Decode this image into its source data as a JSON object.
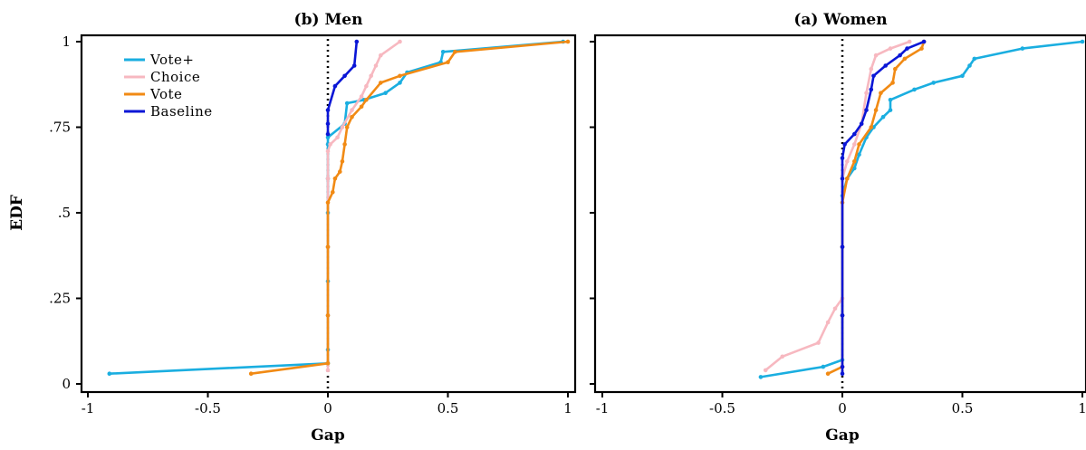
{
  "ylabel": "EDF",
  "legend": [
    {
      "label": "Vote+",
      "color": "#1aaee0",
      "series_index": 0
    },
    {
      "label": "Choice",
      "color": "#f7b8c0",
      "series_index": 1
    },
    {
      "label": "Vote",
      "color": "#f18a14",
      "series_index": 2
    },
    {
      "label": "Baseline",
      "color": "#0a16d6",
      "series_index": 3
    }
  ],
  "chart_data": [
    {
      "type": "line",
      "title": "(b) Men",
      "xlabel": "Gap",
      "ylabel": "EDF",
      "xlim": [
        -1,
        1
      ],
      "ylim": [
        0,
        1
      ],
      "x_ticks": [
        -1,
        -0.5,
        0,
        0.5,
        1
      ],
      "x_tick_labels": [
        "-1",
        "-0.5",
        "0",
        "0.5",
        "1"
      ],
      "y_ticks": [
        0,
        0.25,
        0.5,
        0.75,
        1
      ],
      "y_tick_labels": [
        "0",
        ".25",
        ".5",
        ".75",
        "1"
      ],
      "vline_x": 0,
      "legend_position": "top-left",
      "series": [
        {
          "name": "Vote+",
          "color": "#1aaee0",
          "points": [
            [
              -0.91,
              0.03
            ],
            [
              0,
              0.06
            ],
            [
              0,
              0.1
            ],
            [
              0,
              0.2
            ],
            [
              0,
              0.3
            ],
            [
              0,
              0.4
            ],
            [
              0,
              0.5
            ],
            [
              0,
              0.6
            ],
            [
              0,
              0.7
            ],
            [
              0,
              0.72
            ],
            [
              0.07,
              0.76
            ],
            [
              0.08,
              0.82
            ],
            [
              0.15,
              0.83
            ],
            [
              0.24,
              0.85
            ],
            [
              0.3,
              0.88
            ],
            [
              0.33,
              0.91
            ],
            [
              0.47,
              0.94
            ],
            [
              0.48,
              0.97
            ],
            [
              0.98,
              1
            ]
          ]
        },
        {
          "name": "Choice",
          "color": "#f7b8c0",
          "points": [
            [
              0,
              0.04
            ],
            [
              0,
              0.2
            ],
            [
              0,
              0.4
            ],
            [
              0,
              0.6
            ],
            [
              0,
              0.68
            ],
            [
              0.01,
              0.7
            ],
            [
              0.04,
              0.72
            ],
            [
              0.06,
              0.75
            ],
            [
              0.1,
              0.8
            ],
            [
              0.14,
              0.84
            ],
            [
              0.16,
              0.87
            ],
            [
              0.18,
              0.9
            ],
            [
              0.2,
              0.93
            ],
            [
              0.22,
              0.96
            ],
            [
              0.3,
              1
            ]
          ]
        },
        {
          "name": "Vote",
          "color": "#f18a14",
          "points": [
            [
              -0.32,
              0.03
            ],
            [
              0,
              0.06
            ],
            [
              0,
              0.2
            ],
            [
              0,
              0.4
            ],
            [
              0,
              0.53
            ],
            [
              0.02,
              0.56
            ],
            [
              0.03,
              0.6
            ],
            [
              0.05,
              0.62
            ],
            [
              0.06,
              0.65
            ],
            [
              0.07,
              0.7
            ],
            [
              0.08,
              0.75
            ],
            [
              0.1,
              0.78
            ],
            [
              0.14,
              0.81
            ],
            [
              0.16,
              0.83
            ],
            [
              0.22,
              0.88
            ],
            [
              0.3,
              0.9
            ],
            [
              0.5,
              0.94
            ],
            [
              0.53,
              0.97
            ],
            [
              1.0,
              1
            ]
          ]
        },
        {
          "name": "Baseline",
          "color": "#0a16d6",
          "points": [
            [
              0,
              0.73
            ],
            [
              0,
              0.76
            ],
            [
              0,
              0.8
            ],
            [
              0.03,
              0.87
            ],
            [
              0.07,
              0.9
            ],
            [
              0.11,
              0.93
            ],
            [
              0.12,
              1
            ]
          ]
        }
      ]
    },
    {
      "type": "line",
      "title": "(a) Women",
      "xlabel": "Gap",
      "ylabel": "",
      "xlim": [
        -1,
        1
      ],
      "ylim": [
        0,
        1
      ],
      "x_ticks": [
        -1,
        -0.5,
        0,
        0.5,
        1
      ],
      "x_tick_labels": [
        "-1",
        "-0.5",
        "0",
        "0.5",
        "1"
      ],
      "y_ticks": [
        0,
        0.25,
        0.5,
        0.75,
        1
      ],
      "y_tick_labels": [
        "",
        "",
        "",
        "",
        ""
      ],
      "vline_x": 0,
      "series": [
        {
          "name": "Vote+",
          "color": "#1aaee0",
          "points": [
            [
              -0.34,
              0.02
            ],
            [
              -0.08,
              0.05
            ],
            [
              0,
              0.07
            ],
            [
              0,
              0.2
            ],
            [
              0,
              0.4
            ],
            [
              0,
              0.55
            ],
            [
              0.02,
              0.6
            ],
            [
              0.05,
              0.63
            ],
            [
              0.07,
              0.67
            ],
            [
              0.1,
              0.72
            ],
            [
              0.13,
              0.75
            ],
            [
              0.17,
              0.78
            ],
            [
              0.2,
              0.8
            ],
            [
              0.2,
              0.83
            ],
            [
              0.3,
              0.86
            ],
            [
              0.38,
              0.88
            ],
            [
              0.5,
              0.9
            ],
            [
              0.53,
              0.93
            ],
            [
              0.55,
              0.95
            ],
            [
              0.75,
              0.98
            ],
            [
              1.0,
              1
            ]
          ]
        },
        {
          "name": "Choice",
          "color": "#f7b8c0",
          "points": [
            [
              -0.32,
              0.04
            ],
            [
              -0.25,
              0.08
            ],
            [
              -0.1,
              0.12
            ],
            [
              -0.06,
              0.18
            ],
            [
              -0.03,
              0.22
            ],
            [
              0,
              0.25
            ],
            [
              0,
              0.4
            ],
            [
              0,
              0.6
            ],
            [
              0.02,
              0.65
            ],
            [
              0.05,
              0.7
            ],
            [
              0.08,
              0.76
            ],
            [
              0.1,
              0.85
            ],
            [
              0.12,
              0.92
            ],
            [
              0.14,
              0.96
            ],
            [
              0.2,
              0.98
            ],
            [
              0.28,
              1
            ]
          ]
        },
        {
          "name": "Vote",
          "color": "#f18a14",
          "points": [
            [
              -0.06,
              0.03
            ],
            [
              0,
              0.05
            ],
            [
              0,
              0.2
            ],
            [
              0,
              0.4
            ],
            [
              0,
              0.53
            ],
            [
              0.02,
              0.6
            ],
            [
              0.05,
              0.65
            ],
            [
              0.07,
              0.7
            ],
            [
              0.12,
              0.75
            ],
            [
              0.14,
              0.8
            ],
            [
              0.16,
              0.85
            ],
            [
              0.21,
              0.88
            ],
            [
              0.22,
              0.92
            ],
            [
              0.26,
              0.95
            ],
            [
              0.33,
              0.98
            ],
            [
              0.34,
              1
            ]
          ]
        },
        {
          "name": "Baseline",
          "color": "#0a16d6",
          "points": [
            [
              0,
              0.03
            ],
            [
              0,
              0.05
            ],
            [
              0,
              0.2
            ],
            [
              0,
              0.4
            ],
            [
              0,
              0.6
            ],
            [
              0,
              0.66
            ],
            [
              0.01,
              0.7
            ],
            [
              0.05,
              0.73
            ],
            [
              0.08,
              0.76
            ],
            [
              0.1,
              0.8
            ],
            [
              0.12,
              0.86
            ],
            [
              0.13,
              0.9
            ],
            [
              0.18,
              0.93
            ],
            [
              0.24,
              0.96
            ],
            [
              0.27,
              0.98
            ],
            [
              0.34,
              1
            ]
          ]
        }
      ]
    }
  ]
}
